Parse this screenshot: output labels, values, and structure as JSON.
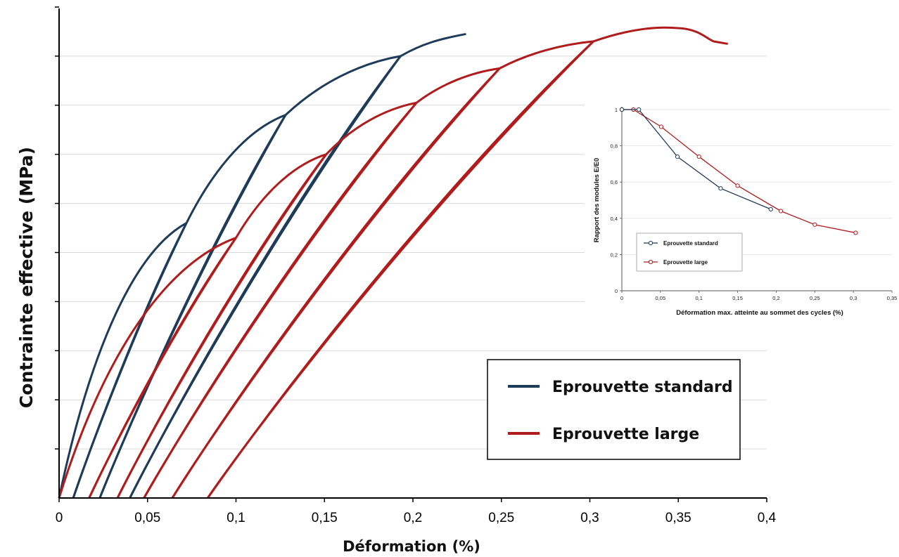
{
  "colors": {
    "standard": "#1f3b5a",
    "large": "#b01c1c",
    "grid": "#d9d9d9"
  },
  "chart_data": [
    {
      "type": "line",
      "title": "",
      "xlabel": "Déformation (%)",
      "ylabel": "Contrainte effective (MPa)",
      "xlim": [
        0,
        0.4
      ],
      "xticks": [
        "0",
        "0,05",
        "0,1",
        "0,15",
        "0,2",
        "0,25",
        "0,3",
        "0,35",
        "0,4"
      ],
      "y_tick_labels_shown": false,
      "ylim_relative": [
        0,
        1
      ],
      "grid": "horizontal",
      "legend_position": "bottom-right",
      "legend": [
        "Eprouvette standard",
        "Eprouvette large"
      ],
      "series": [
        {
          "name": "Eprouvette standard",
          "cycles": [
            {
              "peak": [
                0.072,
                0.56
              ],
              "unload_end": 0.008
            },
            {
              "peak": [
                0.128,
                0.78
              ],
              "unload_end": 0.023
            },
            {
              "peak": [
                0.193,
                0.9
              ],
              "unload_end": 0.04
            }
          ],
          "final_point": [
            0.23,
            0.945
          ]
        },
        {
          "name": "Eprouvette large",
          "cycles": [
            {
              "peak": [
                0.1,
                0.53
              ],
              "unload_end": 0.017
            },
            {
              "peak": [
                0.151,
                0.7
              ],
              "unload_end": 0.033
            },
            {
              "peak": [
                0.202,
                0.805
              ],
              "unload_end": 0.048
            },
            {
              "peak": [
                0.249,
                0.875
              ],
              "unload_end": 0.064
            },
            {
              "peak": [
                0.302,
                0.93
              ],
              "unload_end": 0.084
            }
          ],
          "final_point": [
            0.378,
            0.925
          ]
        }
      ]
    },
    {
      "type": "line",
      "title": "",
      "xlabel": "Déformation max. atteinte au sommet des cycles (%)",
      "ylabel": "Rapport des modules E/E0",
      "xlim": [
        0,
        0.35
      ],
      "ylim": [
        0,
        1
      ],
      "xticks": [
        "0",
        "0,05",
        "0,1",
        "0,15",
        "0,2",
        "0,25",
        "0,3",
        "0,35"
      ],
      "yticks": [
        "0",
        "0,2",
        "0,4",
        "0,6",
        "0,8",
        "1"
      ],
      "legend_position": "bottom-left",
      "series": [
        {
          "name": "Eprouvette standard",
          "x": [
            0,
            0.022,
            0.072,
            0.128,
            0.193
          ],
          "y": [
            1.0,
            1.0,
            0.74,
            0.565,
            0.45
          ]
        },
        {
          "name": "Eprouvette large",
          "x": [
            0,
            0.015,
            0.051,
            0.1,
            0.15,
            0.206,
            0.25,
            0.303
          ],
          "y": [
            1.0,
            1.0,
            0.905,
            0.74,
            0.58,
            0.44,
            0.365,
            0.32
          ]
        }
      ]
    }
  ]
}
